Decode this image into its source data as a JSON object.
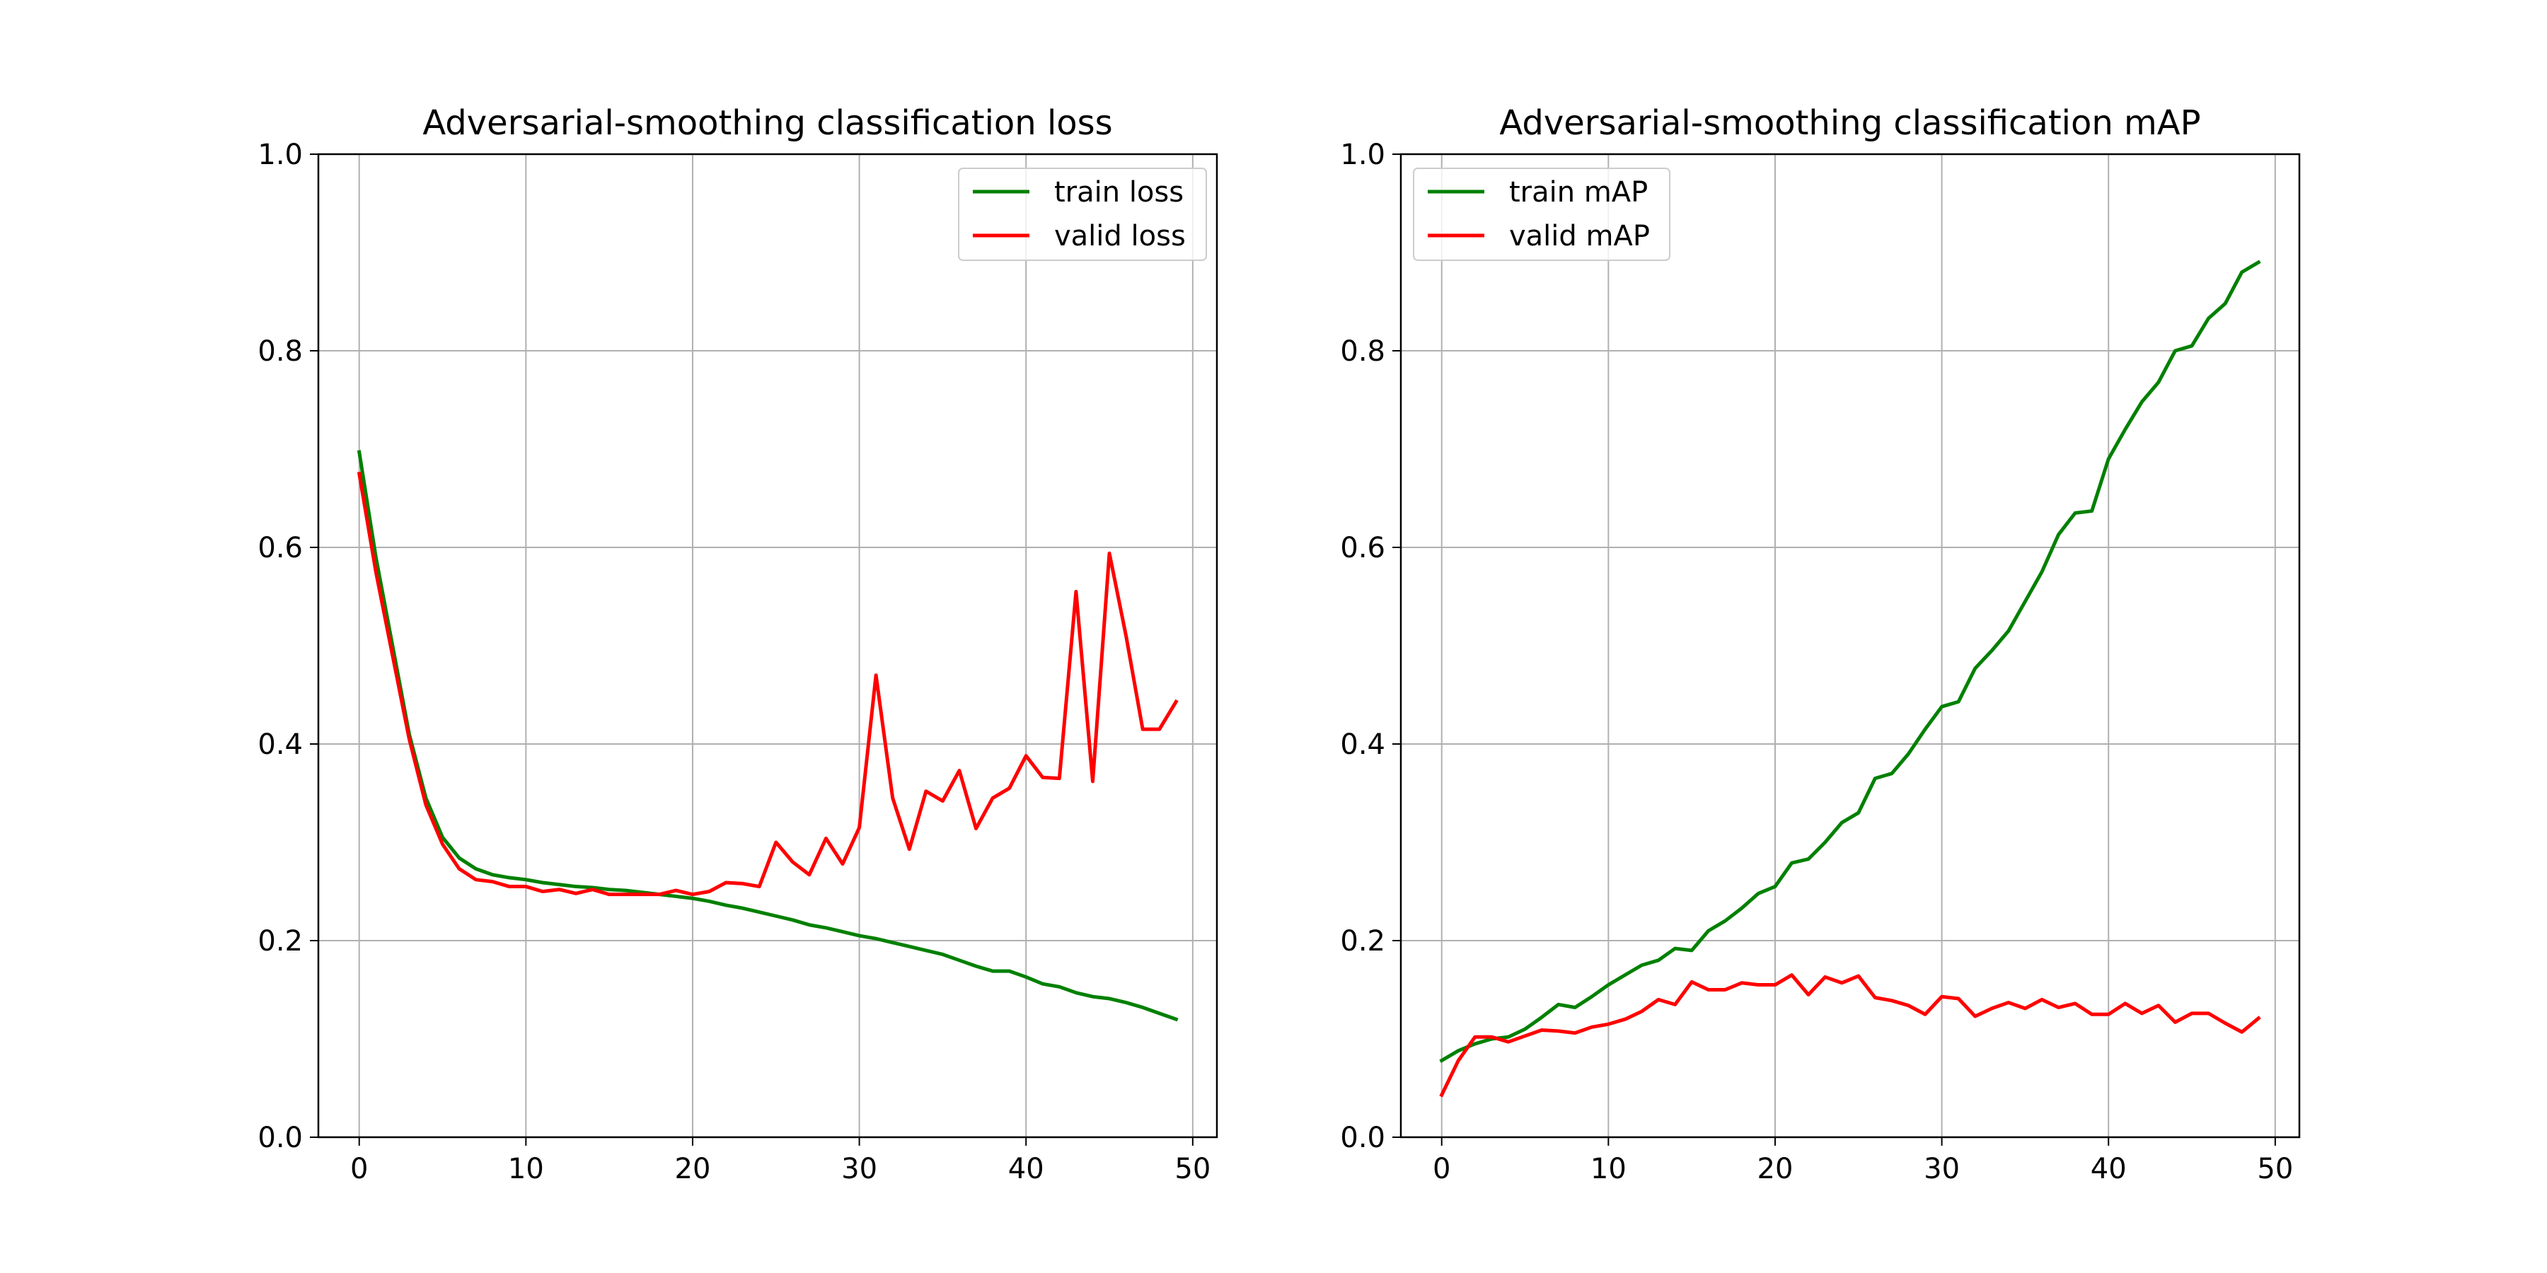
{
  "figure": {
    "background": "#ffffff"
  },
  "chart_data": [
    {
      "type": "line",
      "title": "Adversarial-smoothing classification loss",
      "xlabel": "",
      "ylabel": "",
      "xlim": [
        -2.45,
        51.45
      ],
      "ylim": [
        0.0,
        1.0
      ],
      "xticks": [
        0,
        10,
        20,
        30,
        40,
        50
      ],
      "yticks": [
        0.0,
        0.2,
        0.4,
        0.6,
        0.8,
        1.0
      ],
      "xtick_labels": [
        "0",
        "10",
        "20",
        "30",
        "40",
        "50"
      ],
      "ytick_labels": [
        "0.0",
        "0.2",
        "0.4",
        "0.6",
        "0.8",
        "1.0"
      ],
      "grid": true,
      "legend_position": "top-right",
      "x": [
        0,
        1,
        2,
        3,
        4,
        5,
        6,
        7,
        8,
        9,
        10,
        11,
        12,
        13,
        14,
        15,
        16,
        17,
        18,
        19,
        20,
        21,
        22,
        23,
        24,
        25,
        26,
        27,
        28,
        29,
        30,
        31,
        32,
        33,
        34,
        35,
        36,
        37,
        38,
        39,
        40,
        41,
        42,
        43,
        44,
        45,
        46,
        47,
        48,
        49
      ],
      "series": [
        {
          "name": "train loss",
          "color": "#008000",
          "values": [
            0.697,
            0.59,
            0.5,
            0.41,
            0.345,
            0.305,
            0.284,
            0.273,
            0.267,
            0.264,
            0.262,
            0.259,
            0.257,
            0.255,
            0.254,
            0.252,
            0.251,
            0.249,
            0.247,
            0.245,
            0.243,
            0.24,
            0.236,
            0.233,
            0.229,
            0.225,
            0.221,
            0.216,
            0.213,
            0.209,
            0.205,
            0.202,
            0.198,
            0.194,
            0.19,
            0.186,
            0.18,
            0.174,
            0.169,
            0.169,
            0.163,
            0.156,
            0.153,
            0.147,
            0.143,
            0.141,
            0.137,
            0.132,
            0.126,
            0.12
          ]
        },
        {
          "name": "valid loss",
          "color": "#ff0000",
          "values": [
            0.675,
            0.575,
            0.49,
            0.405,
            0.338,
            0.298,
            0.273,
            0.262,
            0.26,
            0.255,
            0.255,
            0.25,
            0.252,
            0.248,
            0.252,
            0.247,
            0.247,
            0.247,
            0.247,
            0.251,
            0.247,
            0.25,
            0.259,
            0.258,
            0.255,
            0.3,
            0.28,
            0.267,
            0.304,
            0.278,
            0.315,
            0.47,
            0.345,
            0.293,
            0.352,
            0.342,
            0.373,
            0.314,
            0.345,
            0.355,
            0.388,
            0.366,
            0.365,
            0.555,
            0.362,
            0.594,
            0.51,
            0.415,
            0.415,
            0.443
          ]
        }
      ]
    },
    {
      "type": "line",
      "title": "Adversarial-smoothing classification mAP",
      "xlabel": "",
      "ylabel": "",
      "xlim": [
        -2.45,
        51.45
      ],
      "ylim": [
        0.0,
        1.0
      ],
      "xticks": [
        0,
        10,
        20,
        30,
        40,
        50
      ],
      "yticks": [
        0.0,
        0.2,
        0.4,
        0.6,
        0.8,
        1.0
      ],
      "xtick_labels": [
        "0",
        "10",
        "20",
        "30",
        "40",
        "50"
      ],
      "ytick_labels": [
        "0.0",
        "0.2",
        "0.4",
        "0.6",
        "0.8",
        "1.0"
      ],
      "grid": true,
      "legend_position": "top-left",
      "x": [
        0,
        1,
        2,
        3,
        4,
        5,
        6,
        7,
        8,
        9,
        10,
        11,
        12,
        13,
        14,
        15,
        16,
        17,
        18,
        19,
        20,
        21,
        22,
        23,
        24,
        25,
        26,
        27,
        28,
        29,
        30,
        31,
        32,
        33,
        34,
        35,
        36,
        37,
        38,
        39,
        40,
        41,
        42,
        43,
        44,
        45,
        46,
        47,
        48,
        49
      ],
      "series": [
        {
          "name": "train mAP",
          "color": "#008000",
          "values": [
            0.078,
            0.088,
            0.095,
            0.1,
            0.102,
            0.11,
            0.122,
            0.135,
            0.132,
            0.143,
            0.155,
            0.165,
            0.175,
            0.18,
            0.192,
            0.19,
            0.21,
            0.22,
            0.233,
            0.248,
            0.255,
            0.279,
            0.283,
            0.3,
            0.32,
            0.33,
            0.365,
            0.37,
            0.39,
            0.415,
            0.438,
            0.443,
            0.477,
            0.495,
            0.515,
            0.545,
            0.575,
            0.613,
            0.635,
            0.637,
            0.69,
            0.72,
            0.748,
            0.768,
            0.8,
            0.805,
            0.833,
            0.848,
            0.88,
            0.89
          ]
        },
        {
          "name": "valid mAP",
          "color": "#ff0000",
          "values": [
            0.043,
            0.078,
            0.102,
            0.102,
            0.097,
            0.103,
            0.109,
            0.108,
            0.106,
            0.112,
            0.115,
            0.12,
            0.128,
            0.14,
            0.135,
            0.158,
            0.15,
            0.15,
            0.157,
            0.155,
            0.155,
            0.165,
            0.145,
            0.163,
            0.157,
            0.164,
            0.142,
            0.139,
            0.134,
            0.125,
            0.143,
            0.141,
            0.123,
            0.131,
            0.137,
            0.131,
            0.14,
            0.132,
            0.136,
            0.125,
            0.125,
            0.136,
            0.126,
            0.134,
            0.117,
            0.126,
            0.126,
            0.116,
            0.107,
            0.121
          ]
        }
      ]
    }
  ]
}
